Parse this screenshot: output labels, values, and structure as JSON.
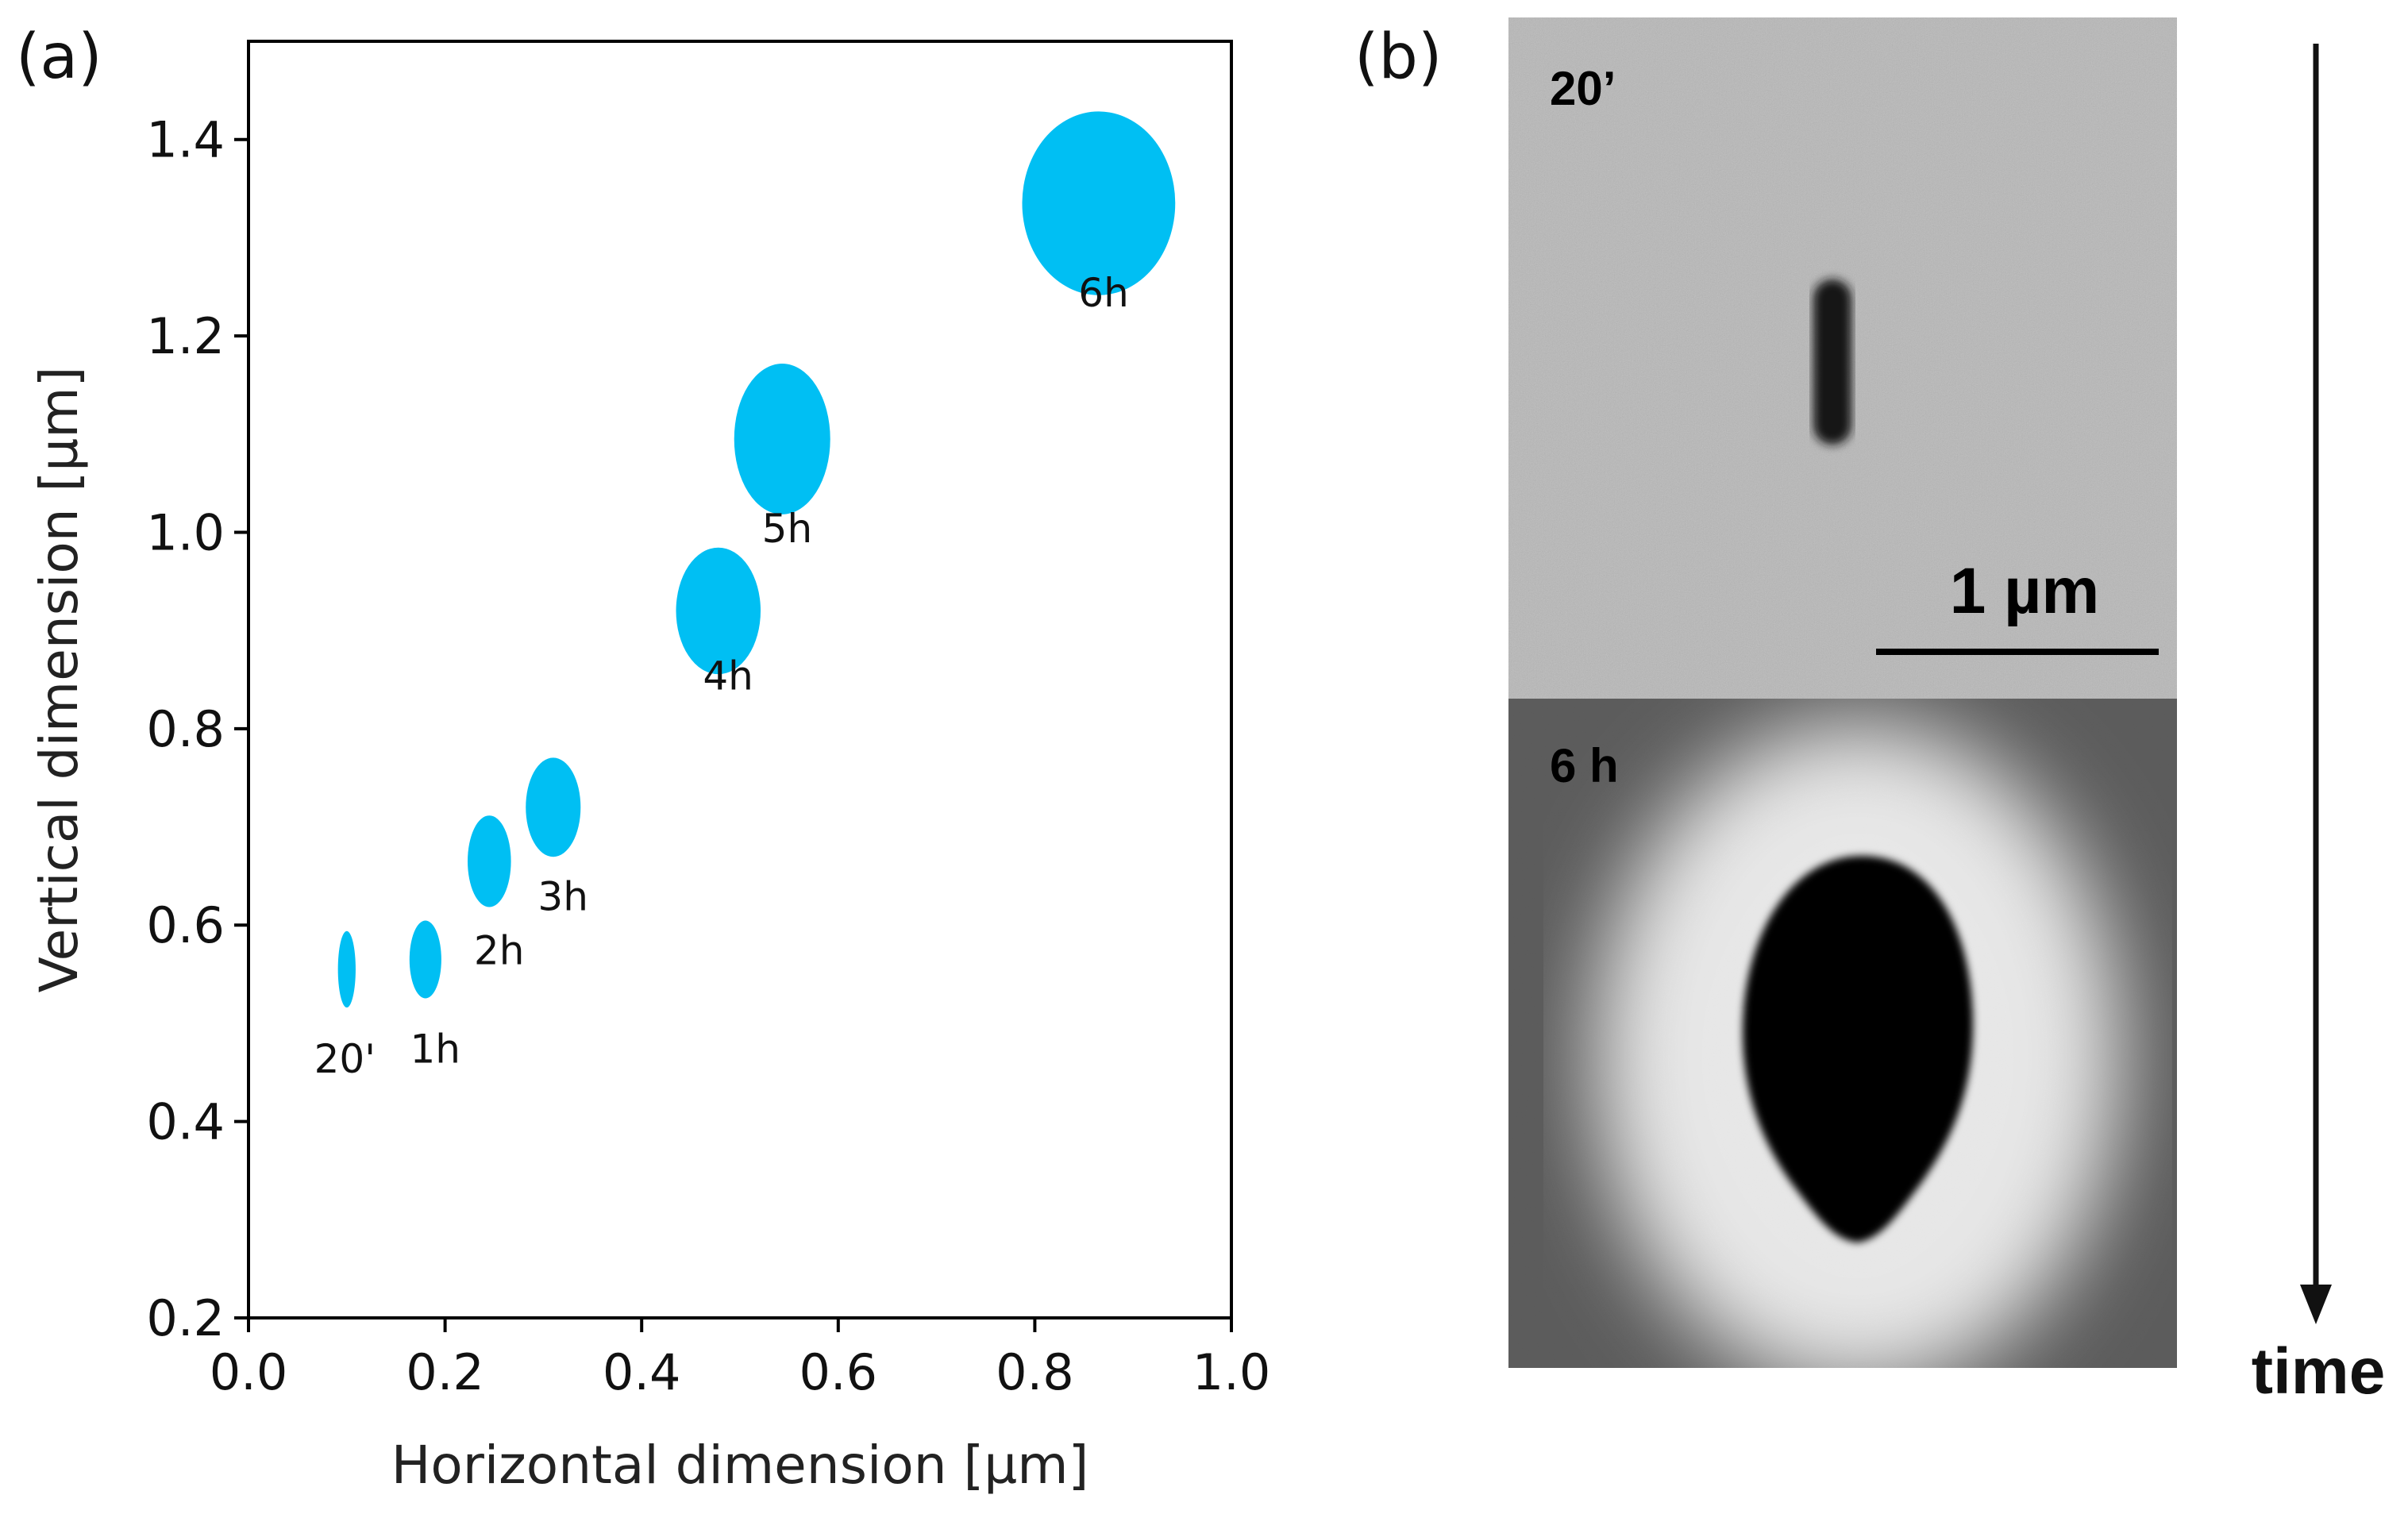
{
  "panel_a": {
    "label": "(a)"
  },
  "panel_b": {
    "label": "(b)"
  },
  "chart_data": {
    "type": "scatter",
    "title": "",
    "xlabel": "Horizontal dimension [µm]",
    "ylabel": "Vertical dimension [µm]",
    "xlim": [
      0.0,
      1.0
    ],
    "ylim": [
      0.2,
      1.5
    ],
    "xticks": [
      "0.0",
      "0.2",
      "0.4",
      "0.6",
      "0.8",
      "1.0"
    ],
    "yticks": [
      "0.2",
      "0.4",
      "0.6",
      "0.8",
      "1.0",
      "1.2",
      "1.4"
    ],
    "marker": "ellipse sized by horizontal and vertical dimension",
    "color": "#00bff3",
    "points": [
      {
        "label": "20'",
        "x": 0.1,
        "y": 0.555
      },
      {
        "label": "1h",
        "x": 0.18,
        "y": 0.565
      },
      {
        "label": "2h",
        "x": 0.245,
        "y": 0.665
      },
      {
        "label": "3h",
        "x": 0.31,
        "y": 0.72
      },
      {
        "label": "4h",
        "x": 0.478,
        "y": 0.92
      },
      {
        "label": "5h",
        "x": 0.543,
        "y": 1.095
      },
      {
        "label": "6h",
        "x": 0.865,
        "y": 1.335
      }
    ]
  },
  "micrographs": {
    "top_label": "20’",
    "bottom_label": "6 h",
    "scale_bar_text": "1 µm",
    "time_label": "time"
  }
}
